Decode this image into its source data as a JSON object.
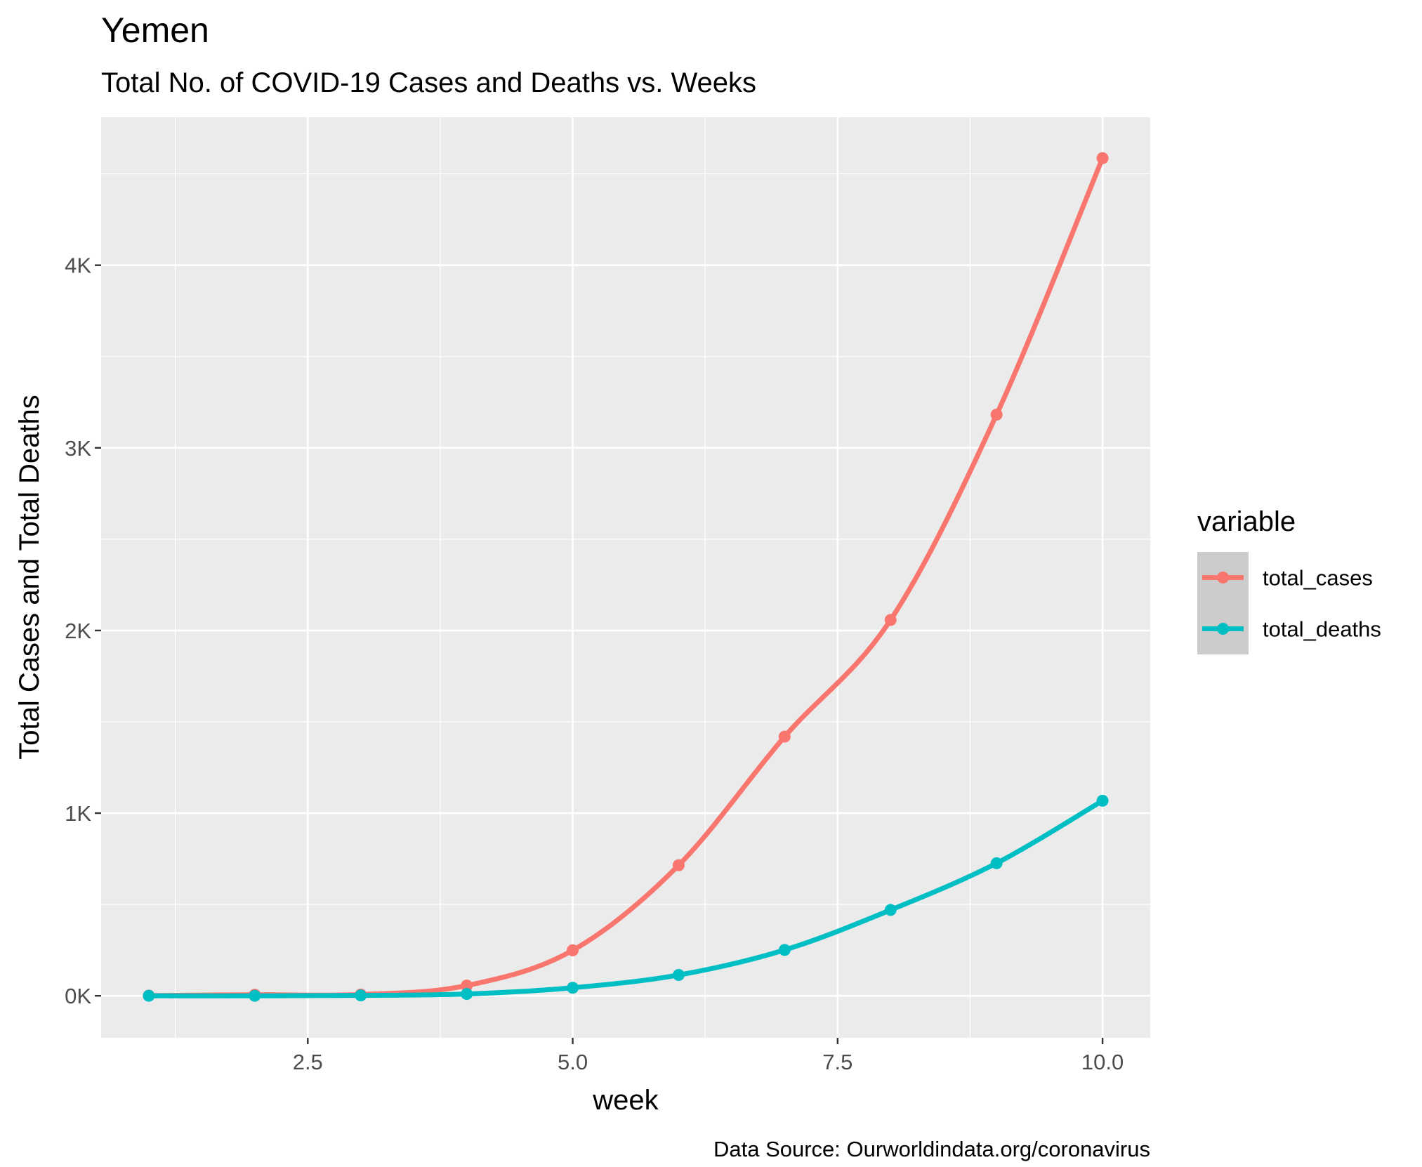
{
  "chart_data": {
    "type": "line",
    "title": "Yemen",
    "subtitle": "Total No. of COVID-19 Cases and Deaths vs. Weeks",
    "xlabel": "week",
    "ylabel": "Total Cases and Total Deaths",
    "caption": "Data Source: Ourworldindata.org/coronavirus",
    "x": [
      1,
      2,
      3,
      4,
      5,
      6,
      7,
      8,
      9,
      10
    ],
    "xlim": [
      0.55,
      10.45
    ],
    "ylim": [
      -230,
      4810
    ],
    "x_ticks": [
      2.5,
      5.0,
      7.5,
      10.0
    ],
    "x_tick_labels": [
      "2.5",
      "5.0",
      "7.5",
      "10.0"
    ],
    "y_ticks": [
      0,
      1000,
      2000,
      3000,
      4000
    ],
    "y_tick_labels": [
      "0K",
      "1K",
      "2K",
      "3K",
      "4K"
    ],
    "grid": true,
    "smoothed": true,
    "legend": {
      "title": "variable",
      "position": "right"
    },
    "series": [
      {
        "name": "total_cases",
        "color": "#F8766D",
        "values": [
          1,
          6,
          7,
          56,
          249,
          715,
          1419,
          2058,
          3182,
          4586
        ]
      },
      {
        "name": "total_deaths",
        "color": "#00BFC4",
        "values": [
          0,
          0,
          2,
          10,
          44,
          114,
          251,
          470,
          726,
          1068
        ]
      }
    ],
    "panel_background": "#EBEBEB",
    "grid_color": "#FFFFFF"
  }
}
